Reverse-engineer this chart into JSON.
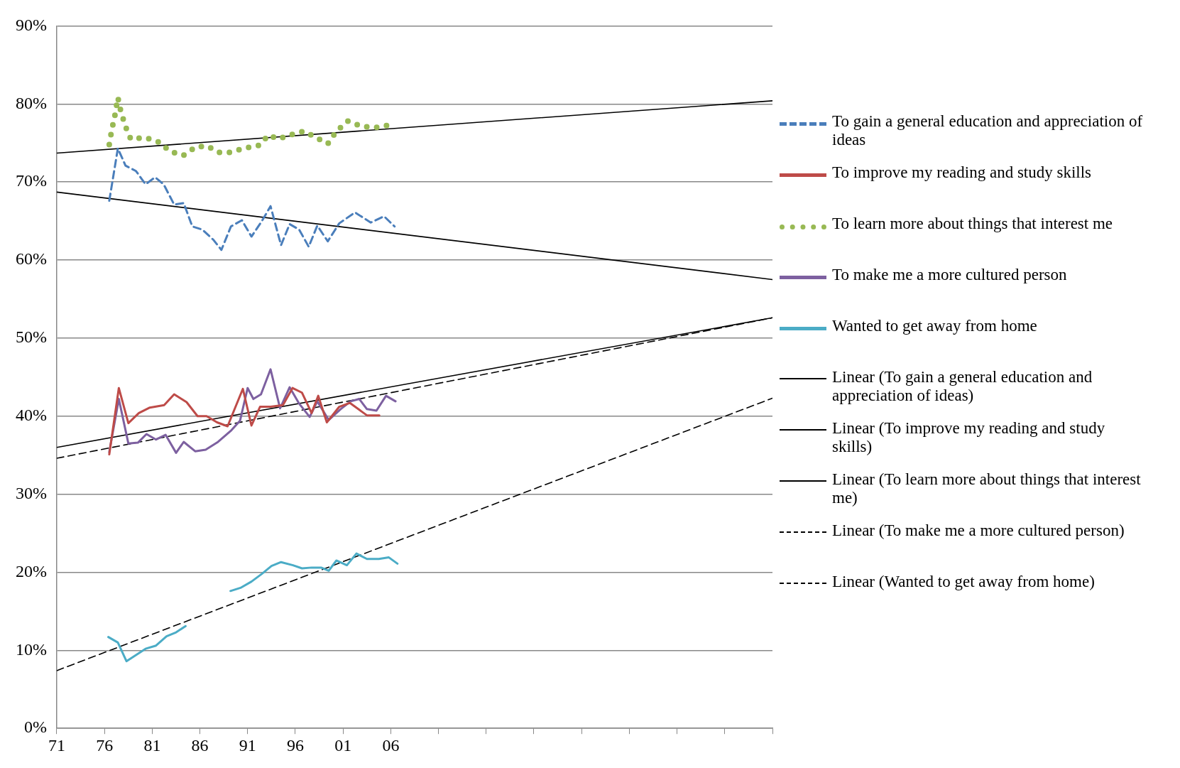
{
  "chart_data": {
    "type": "line",
    "xlim": [
      1971,
      2046
    ],
    "ylim": [
      0,
      90
    ],
    "xticks": [
      {
        "value": 1971,
        "label": "71"
      },
      {
        "value": 1976,
        "label": "76"
      },
      {
        "value": 1981,
        "label": "81"
      },
      {
        "value": 1986,
        "label": "86"
      },
      {
        "value": 1991,
        "label": "91"
      },
      {
        "value": 1996,
        "label": "96"
      },
      {
        "value": 2001,
        "label": "01"
      },
      {
        "value": 2006,
        "label": "06"
      },
      {
        "value": 2011,
        "label": null
      },
      {
        "value": 2016,
        "label": null
      },
      {
        "value": 2021,
        "label": null
      },
      {
        "value": 2026,
        "label": null
      },
      {
        "value": 2031,
        "label": null
      },
      {
        "value": 2036,
        "label": null
      },
      {
        "value": 2041,
        "label": null
      },
      {
        "value": 2046,
        "label": null
      }
    ],
    "yticks": [
      {
        "value": 0,
        "label": "0%"
      },
      {
        "value": 10,
        "label": "10%"
      },
      {
        "value": 20,
        "label": "20%"
      },
      {
        "value": 30,
        "label": "30%"
      },
      {
        "value": 40,
        "label": "40%"
      },
      {
        "value": 50,
        "label": "50%"
      },
      {
        "value": 60,
        "label": "60%"
      },
      {
        "value": 70,
        "label": "70%"
      },
      {
        "value": 80,
        "label": "80%"
      },
      {
        "value": 90,
        "label": "90%"
      }
    ],
    "grid": "y",
    "legend": "right",
    "series": [
      {
        "name": "To gain a general education and appreciation of ideas",
        "color": "#4a7ebb",
        "line_style": "dashed",
        "x": [
          1976.5,
          1977.4,
          1978.2,
          1979.3,
          1980.3,
          1981.3,
          1982.2,
          1983.3,
          1984.3,
          1985.2,
          1986.25,
          1987.4,
          1988.25,
          1989.25,
          1990.4,
          1991.4,
          1992.5,
          1993.4,
          1994.5,
          1995.4,
          1996.4,
          1997.4,
          1998.3,
          1999.4,
          2000.6,
          2002.25,
          2003.9,
          2005.3,
          2006.4
        ],
        "values": [
          67.6,
          74.3,
          72.1,
          71.4,
          69.7,
          70.6,
          69.7,
          67.1,
          67.3,
          64.3,
          63.9,
          62.6,
          61.3,
          64.3,
          65.1,
          63.0,
          65.0,
          66.9,
          61.9,
          64.6,
          63.9,
          61.7,
          64.4,
          62.4,
          64.7,
          66.1,
          64.8,
          65.6,
          64.3
        ]
      },
      {
        "name": "To improve my reading and study skills",
        "color": "#be4b48",
        "line_style": "solid",
        "x": [
          1976.5,
          1977.5,
          1978.5,
          1979.6,
          1980.75,
          1982.25,
          1983.3,
          1984.6,
          1985.75,
          1986.7,
          1987.8,
          1988.9,
          1990.5,
          1991.4,
          1992.3,
          1993.4,
          1994.7,
          1995.7,
          1996.7,
          1997.7,
          1998.4,
          1999.3,
          2000.6,
          2001.7,
          2003.5,
          2004.8
        ],
        "values": [
          35.1,
          43.6,
          39.1,
          40.4,
          41.1,
          41.4,
          42.8,
          41.8,
          40.0,
          40.0,
          39.2,
          38.7,
          43.5,
          38.8,
          41.2,
          41.2,
          41.4,
          43.6,
          43.0,
          40.4,
          42.6,
          39.2,
          41.2,
          41.7,
          40.1,
          40.1
        ]
      },
      {
        "name": "To learn more about things that interest me",
        "color": "#98b954",
        "line_style": "dotted",
        "x": [
          1976.5,
          1976.75,
          1977.1,
          1977.4,
          1977.7,
          1978.2,
          1978.75,
          1980.25,
          1981.7,
          1982.9,
          1984.25,
          1985.6,
          1986.8,
          1987.9,
          1989.2,
          1990.6,
          1992.2,
          1993.2,
          1994.2,
          1995.4,
          1996.9,
          1999.4,
          2000.3,
          2001.5,
          2003,
          2004.6,
          2005.9
        ],
        "values": [
          74.8,
          76.6,
          78.6,
          80.8,
          79.1,
          77.1,
          75.5,
          75.7,
          75.1,
          73.9,
          73.4,
          74.5,
          74.6,
          73.8,
          73.8,
          74.3,
          74.7,
          76.0,
          75.5,
          76.0,
          76.5,
          74.9,
          76.5,
          77.8,
          77.1,
          77.0,
          77.3
        ]
      },
      {
        "name": "To make me a more cultured person",
        "color": "#7d60a0",
        "line_style": "solid",
        "x": [
          1976.5,
          1977.5,
          1978.5,
          1979.5,
          1980.4,
          1981.4,
          1982.4,
          1983.5,
          1984.3,
          1985.5,
          1986.6,
          1987.9,
          1989.3,
          1990.2,
          1991,
          1991.6,
          1992.4,
          1993.4,
          1994.4,
          1995.4,
          1996.4,
          1997.5,
          1998.3,
          1999.5,
          2000.75,
          2001.8,
          2002.7,
          2003.5,
          2004.5,
          2005.5,
          2006.5
        ],
        "values": [
          35.4,
          42.2,
          36.5,
          36.6,
          37.7,
          37.0,
          37.6,
          35.3,
          36.7,
          35.5,
          35.7,
          36.7,
          38.2,
          39.4,
          43.6,
          42.2,
          42.8,
          46.0,
          41.0,
          43.7,
          41.6,
          39.9,
          41.9,
          39.5,
          40.9,
          41.9,
          42.2,
          40.9,
          40.7,
          42.6,
          41.9
        ]
      },
      {
        "name": "Wanted to get away from home",
        "color": "#4bacc6",
        "line_style": "solid",
        "x": [
          1976.4,
          1977.4,
          1978.3,
          1979.3,
          1980.3,
          1981.4,
          1982.5,
          1983.5,
          1984.5,
          1987,
          1989.2,
          1990.25,
          1991.4,
          1992.5,
          1993.5,
          1994.5,
          1995.75,
          1996.7,
          1997.7,
          1998.7,
          1999.5,
          2000.3,
          2001.4,
          2002.4,
          2003.5,
          2004.75,
          2005.8,
          2006.7
        ],
        "values": [
          11.7,
          11.0,
          8.6,
          9.4,
          10.2,
          10.6,
          11.8,
          12.3,
          13.1,
          null,
          17.6,
          18.0,
          18.8,
          19.8,
          20.8,
          21.3,
          20.9,
          20.5,
          20.6,
          20.6,
          20.2,
          21.5,
          20.9,
          22.4,
          21.7,
          21.7,
          21.9,
          21.1
        ]
      },
      {
        "name": "Linear (To gain a general education and appreciation of ideas)",
        "color": "#000000",
        "line_style": "solid",
        "x": [
          1971,
          2046
        ],
        "values": [
          68.7,
          57.5
        ]
      },
      {
        "name": "Linear (To improve my reading and study skills)",
        "color": "#000000",
        "line_style": "solid",
        "x": [
          1971,
          2046
        ],
        "values": [
          36.0,
          52.6
        ]
      },
      {
        "name": "Linear (To learn more about things that interest me)",
        "color": "#000000",
        "line_style": "solid",
        "x": [
          1971,
          2046
        ],
        "values": [
          73.7,
          80.4
        ]
      },
      {
        "name": "Linear (To make me a more cultured person)",
        "color": "#000000",
        "line_style": "dashed",
        "x": [
          1971,
          2046
        ],
        "values": [
          34.6,
          52.6
        ]
      },
      {
        "name": "Linear (Wanted to get away from home)",
        "color": "#000000",
        "line_style": "dashed",
        "x": [
          1971,
          2046
        ],
        "values": [
          7.4,
          42.3
        ]
      }
    ]
  }
}
